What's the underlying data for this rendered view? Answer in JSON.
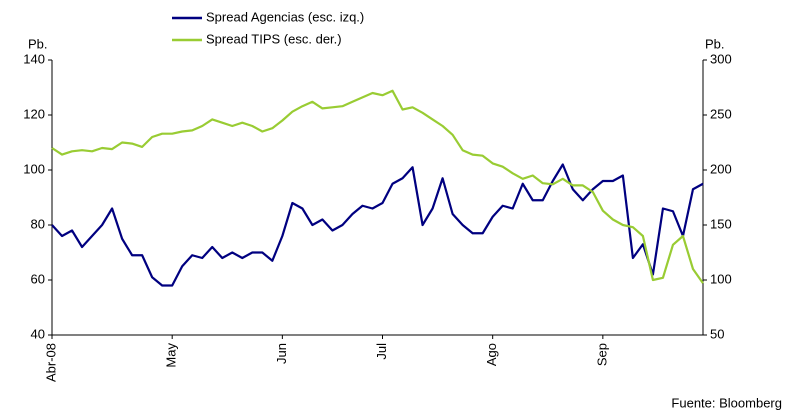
{
  "chart_data": {
    "type": "line",
    "y_label": "Pb.",
    "y2_label": "Pb.",
    "source": "Fuente: Bloomberg",
    "categories": [
      "Abr-08",
      null,
      null,
      null,
      null,
      null,
      null,
      null,
      null,
      null,
      null,
      null,
      "May",
      null,
      null,
      null,
      null,
      null,
      null,
      null,
      null,
      null,
      null,
      "Jun",
      null,
      null,
      null,
      null,
      null,
      null,
      null,
      null,
      null,
      "Jul",
      null,
      null,
      null,
      null,
      null,
      null,
      null,
      null,
      null,
      null,
      "Ago",
      null,
      null,
      null,
      null,
      null,
      null,
      null,
      null,
      null,
      null,
      "Sep",
      null,
      null,
      null,
      null,
      null,
      null,
      null,
      null,
      null,
      null
    ],
    "series": [
      {
        "name": "Spread Agencias (esc. izq.)",
        "color": "#000080",
        "axis": "y",
        "values": [
          80,
          76,
          78,
          72,
          76,
          80,
          86,
          75,
          69,
          69,
          61,
          58,
          58,
          65,
          69,
          68,
          72,
          68,
          70,
          68,
          70,
          70,
          67,
          76,
          88,
          86,
          80,
          82,
          78,
          80,
          84,
          87,
          86,
          88,
          95,
          97,
          101,
          80,
          86,
          97,
          84,
          80,
          77,
          77,
          83,
          87,
          86,
          95,
          89,
          89,
          96,
          102,
          93,
          89,
          93,
          96,
          96,
          98,
          68,
          73,
          62,
          86,
          85,
          76,
          93,
          95
        ]
      },
      {
        "name": "Spread TIPS (esc. der.)",
        "color": "#99cc33",
        "axis": "y2",
        "values": [
          220,
          214,
          217,
          218,
          217,
          220,
          219,
          225,
          224,
          221,
          230,
          233,
          233,
          235,
          236,
          240,
          246,
          243,
          240,
          243,
          240,
          235,
          238,
          245,
          253,
          258,
          262,
          256,
          257,
          258,
          262,
          266,
          270,
          268,
          272,
          255,
          257,
          252,
          246,
          240,
          232,
          218,
          214,
          213,
          206,
          203,
          197,
          192,
          195,
          188,
          187,
          192,
          186,
          186,
          180,
          163,
          155,
          150,
          148,
          140,
          100,
          102,
          132,
          140,
          110,
          97
        ]
      }
    ],
    "ylim": [
      40,
      140
    ],
    "yticks": [
      40,
      60,
      80,
      100,
      120,
      140
    ],
    "y2lim": [
      50,
      300
    ],
    "y2ticks": [
      50,
      100,
      150,
      200,
      250,
      300
    ]
  }
}
